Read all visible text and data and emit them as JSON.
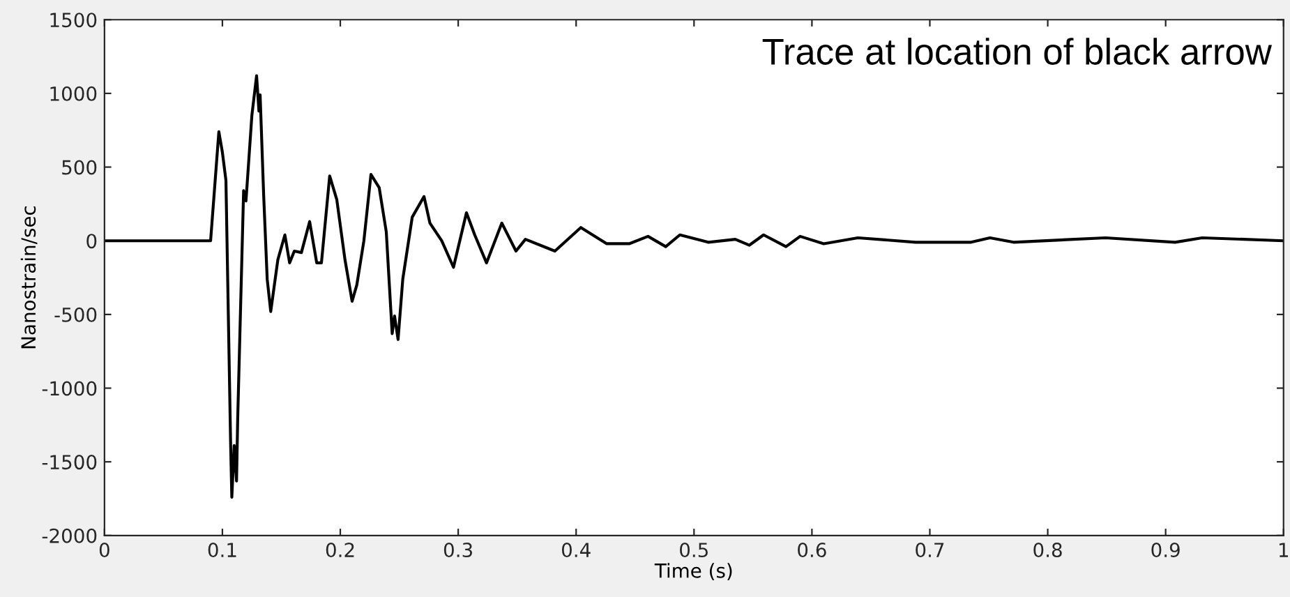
{
  "chart_data": {
    "type": "line",
    "xlabel": "Time (s)",
    "ylabel": "Nanostrain/sec",
    "annotations": [
      "Trace at location of black arrow"
    ],
    "xlim": [
      0,
      1
    ],
    "xticks": [
      0,
      0.1,
      0.2,
      0.3,
      0.4,
      0.5,
      0.6,
      0.7,
      0.8,
      0.9,
      1
    ],
    "ylim": [
      -2000,
      1500
    ],
    "yticks": [
      -2000,
      -1500,
      -1000,
      -500,
      0,
      500,
      1000,
      1500
    ],
    "grid": false,
    "marker": "none",
    "line_style": "solid",
    "series": [
      {
        "color": "#000000",
        "x": [
          0,
          0.09,
          0.097,
          0.1,
          0.103,
          0.107,
          0.108,
          0.11,
          0.112,
          0.113,
          0.118,
          0.12,
          0.125,
          0.129,
          0.131,
          0.132,
          0.135,
          0.138,
          0.141,
          0.147,
          0.153,
          0.157,
          0.161,
          0.167,
          0.174,
          0.18,
          0.184,
          0.191,
          0.197,
          0.204,
          0.21,
          0.214,
          0.22,
          0.226,
          0.233,
          0.239,
          0.244,
          0.246,
          0.249,
          0.253,
          0.261,
          0.271,
          0.276,
          0.286,
          0.296,
          0.307,
          0.314,
          0.324,
          0.337,
          0.349,
          0.357,
          0.382,
          0.404,
          0.426,
          0.445,
          0.461,
          0.476,
          0.488,
          0.512,
          0.535,
          0.547,
          0.559,
          0.578,
          0.59,
          0.61,
          0.639,
          0.688,
          0.735,
          0.751,
          0.771,
          0.849,
          0.908,
          0.931,
          1
        ],
        "values": [
          0,
          0,
          740,
          600,
          410,
          -1390,
          -1740,
          -1390,
          -1630,
          -1200,
          340,
          270,
          850,
          1120,
          880,
          990,
          310,
          -260,
          -480,
          -130,
          40,
          -150,
          -70,
          -80,
          130,
          -150,
          -150,
          440,
          280,
          -130,
          -410,
          -300,
          0,
          450,
          360,
          60,
          -630,
          -510,
          -670,
          -260,
          160,
          300,
          120,
          0,
          -180,
          190,
          40,
          -150,
          120,
          -70,
          10,
          -70,
          90,
          -20,
          -20,
          30,
          -40,
          40,
          -10,
          10,
          -30,
          40,
          -40,
          30,
          -20,
          20,
          -10,
          -10,
          20,
          -10,
          20,
          -10,
          20,
          0
        ]
      }
    ]
  }
}
